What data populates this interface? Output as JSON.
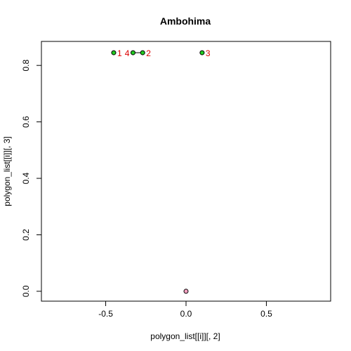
{
  "chart_data": {
    "type": "scatter",
    "title": "Ambohima",
    "xlabel": "polygon_list[[i]][, 2]",
    "ylabel": "polygon_list[[i]][, 3]",
    "xlim": [
      -0.9,
      0.9
    ],
    "ylim": [
      -0.035,
      0.885
    ],
    "x_ticks": [
      -0.5,
      0.0,
      0.5
    ],
    "x_tick_labels": [
      "-0.5",
      "0.0",
      "0.5"
    ],
    "y_ticks": [
      0.0,
      0.2,
      0.4,
      0.6,
      0.8
    ],
    "y_tick_labels": [
      "0.0",
      "0.2",
      "0.4",
      "0.6",
      "0.8"
    ],
    "grid": false,
    "series": [
      {
        "points": [
          {
            "x": -0.45,
            "y": 0.845,
            "label": "1",
            "label_side": "right"
          },
          {
            "x": -0.27,
            "y": 0.845,
            "label": "2",
            "label_side": "right"
          },
          {
            "x": 0.1,
            "y": 0.845,
            "label": "3",
            "label_side": "right"
          },
          {
            "x": -0.33,
            "y": 0.845,
            "label": "4",
            "label_side": "left"
          }
        ],
        "fill": "#22cc22",
        "label_color": "#dd0000"
      },
      {
        "points": [
          {
            "x": 0.0,
            "y": 0.0
          }
        ],
        "fill": "#f4a0c0"
      }
    ],
    "connector_segments": [
      [
        -0.33,
        0.845,
        -0.27,
        0.845
      ]
    ]
  }
}
